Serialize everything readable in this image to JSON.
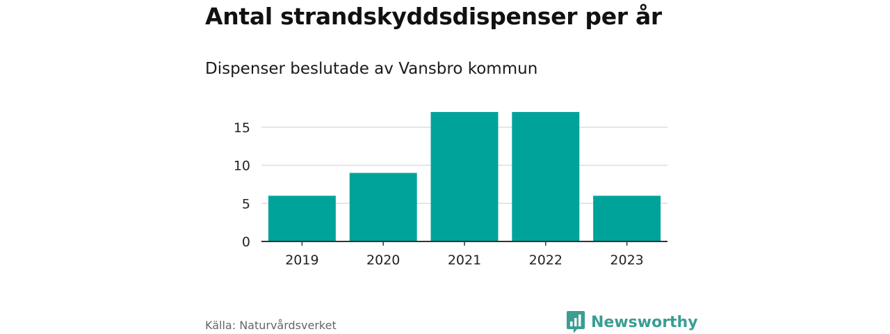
{
  "header": {
    "title": "Antal strandskyddsdispenser per år",
    "subtitle": "Dispenser beslutade av Vansbro kommun"
  },
  "footer": {
    "source": "Källa: Naturvårdsverket",
    "brand": "Newsworthy",
    "brand_icon": "bar-chart-icon"
  },
  "colors": {
    "bar": "#00a39a",
    "grid": "#dddddd",
    "axis": "#333333",
    "brand": "#3a9e93"
  },
  "chart_data": {
    "type": "bar",
    "categories": [
      "2019",
      "2020",
      "2021",
      "2022",
      "2023"
    ],
    "values": [
      6,
      9,
      17,
      17,
      6
    ],
    "yticks": [
      0,
      5,
      10,
      15
    ],
    "ytick_labels": [
      "0",
      "5",
      "10",
      "15"
    ],
    "ylim": [
      0,
      18
    ],
    "grid": true,
    "legend": "none",
    "xlabel": "",
    "ylabel": ""
  }
}
